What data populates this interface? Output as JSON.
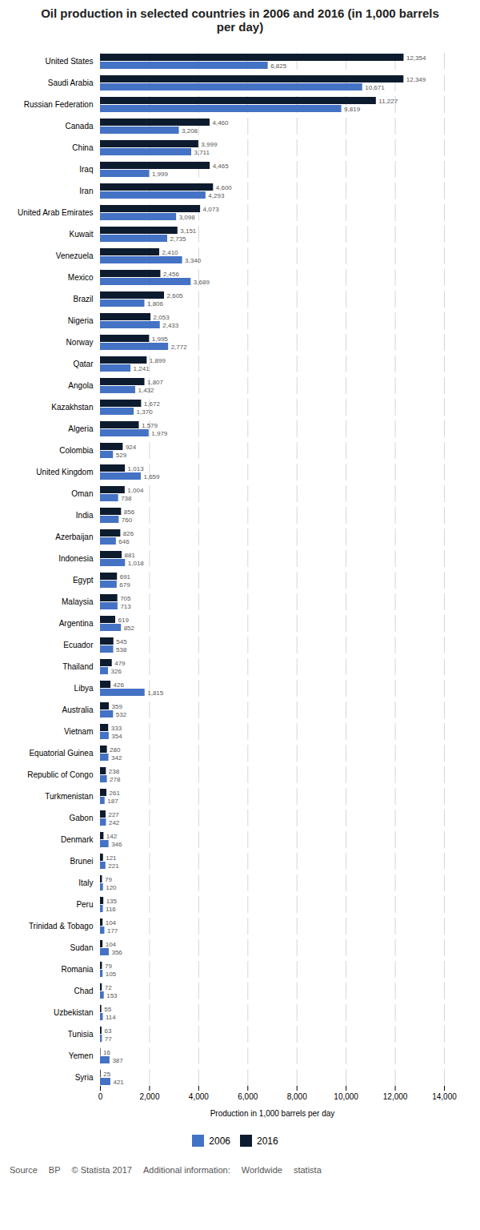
{
  "chart_data": {
    "type": "bar",
    "orientation": "horizontal",
    "title": "Oil production in selected countries in 2006 and 2016 (in 1,000 barrels\nper day)",
    "xlabel": "Production in 1,000 barrels per day",
    "categories": [
      "United States",
      "Saudi Arabia",
      "Russian Federation",
      "Canada",
      "China",
      "Iraq",
      "Iran",
      "United Arab Emirates",
      "Kuwait",
      "Venezuela",
      "Mexico",
      "Brazil",
      "Nigeria",
      "Norway",
      "Qatar",
      "Angola",
      "Kazakhstan",
      "Algeria",
      "Colombia",
      "United Kingdom",
      "Oman",
      "India",
      "Azerbaijan",
      "Indonesia",
      "Egypt",
      "Malaysia",
      "Argentina",
      "Ecuador",
      "Thailand",
      "Libya",
      "Australia",
      "Vietnam",
      "Equatorial Guinea",
      "Republic of Congo",
      "Turkmenistan",
      "Gabon",
      "Denmark",
      "Brunei",
      "Italy",
      "Peru",
      "Trinidad & Tobago",
      "Sudan",
      "Romania",
      "Chad",
      "Uzbekistan",
      "Tunisia",
      "Yemen",
      "Syria"
    ],
    "series": [
      {
        "name": "2006",
        "color": "#4472c4",
        "values": [
          6825,
          10671,
          9819,
          3208,
          3711,
          1999,
          4293,
          3098,
          2735,
          3340,
          3689,
          1806,
          2433,
          2772,
          1241,
          1432,
          1370,
          1979,
          529,
          1659,
          738,
          760,
          646,
          1018,
          679,
          713,
          852,
          538,
          326,
          1815,
          532,
          354,
          342,
          278,
          187,
          242,
          346,
          221,
          120,
          116,
          177,
          356,
          105,
          153,
          114,
          77,
          387,
          421
        ],
        "value_labels": [
          "6,825",
          "10,671",
          "9,819",
          "3,208",
          "3,711",
          "1,999",
          "4,293",
          "3,098",
          "2,735",
          "3,340",
          "3,689",
          "1,806",
          "2,433",
          "2,772",
          "1,241",
          "1,432",
          "1,370",
          "1,979",
          "529",
          "1,659",
          "738",
          "760",
          "646",
          "1,018",
          "679",
          "713",
          "852",
          "538",
          "326",
          "1,815",
          "532",
          "354",
          "342",
          "278",
          "187",
          "242",
          "346",
          "221",
          "120",
          "116",
          "177",
          "356",
          "105",
          "153",
          "114",
          "77",
          "387",
          "421"
        ]
      },
      {
        "name": "2016",
        "color": "#0d1b2e",
        "values": [
          12354,
          12349,
          11227,
          4460,
          3999,
          4465,
          4600,
          4073,
          3151,
          2410,
          2456,
          2605,
          2053,
          1995,
          1899,
          1807,
          1672,
          1579,
          924,
          1013,
          1004,
          856,
          826,
          881,
          691,
          705,
          619,
          545,
          479,
          426,
          359,
          333,
          280,
          238,
          261,
          227,
          142,
          121,
          79,
          135,
          104,
          104,
          79,
          72,
          55,
          63,
          16,
          25
        ],
        "value_labels": [
          "12,354",
          "12,349",
          "11,227",
          "4,460",
          "3,999",
          "4,465",
          "4,600",
          "4,073",
          "3,151",
          "2,410",
          "2,456",
          "2,605",
          "2,053",
          "1,995",
          "1,899",
          "1,807",
          "1,672",
          "1,579",
          "924",
          "1,013",
          "1,004",
          "856",
          "826",
          "881",
          "691",
          "705",
          "619",
          "545",
          "479",
          "426",
          "359",
          "333",
          "280",
          "238",
          "261",
          "227",
          "142",
          "121",
          "79",
          "135",
          "104",
          "104",
          "79",
          "72",
          "55",
          "63",
          "16",
          "25"
        ]
      }
    ],
    "xlim": [
      0,
      14000
    ],
    "xticks": [
      0,
      {
        "value": 2000,
        "label": "2,000"
      },
      {
        "value": 4000,
        "label": "4,000"
      },
      {
        "value": 6000,
        "label": "6,000"
      },
      {
        "value": 8000,
        "label": "8,000"
      },
      {
        "value": 10000,
        "label": "10,000"
      },
      {
        "value": 12000,
        "label": "12,000"
      },
      {
        "value": 14000,
        "label": "14,000"
      }
    ],
    "grid": true,
    "data_labels": true,
    "legend": "bottom",
    "annotations": [
      "Source",
      "BP",
      "© Statista 2017",
      "Additional information:",
      "Worldwide",
      "statista"
    ]
  }
}
